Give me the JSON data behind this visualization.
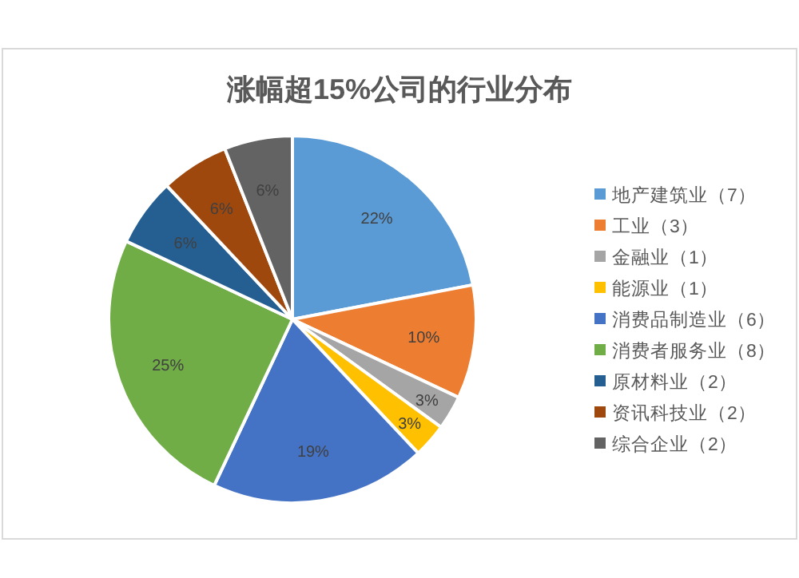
{
  "chart_data": {
    "type": "pie",
    "title": "涨幅超15%公司的行业分布",
    "categories": [
      "地产建筑业（7）",
      "工业（3）",
      "金融业（1）",
      "能源业（1）",
      "消费品制造业（6）",
      "消费者服务业（8）",
      "原材料业（2）",
      "资讯科技业（2）",
      "综合企业（2）"
    ],
    "values": [
      22,
      10,
      3,
      3,
      19,
      25,
      6,
      6,
      6
    ],
    "colors": [
      "#5b9bd5",
      "#ed7d31",
      "#a5a5a5",
      "#ffc000",
      "#4472c4",
      "#70ad47",
      "#255e91",
      "#9e480e",
      "#636363"
    ],
    "value_labels": [
      "22%",
      "10%",
      "3%",
      "3%",
      "19%",
      "25%",
      "6%",
      "6%",
      "6%"
    ],
    "legend": "right"
  }
}
